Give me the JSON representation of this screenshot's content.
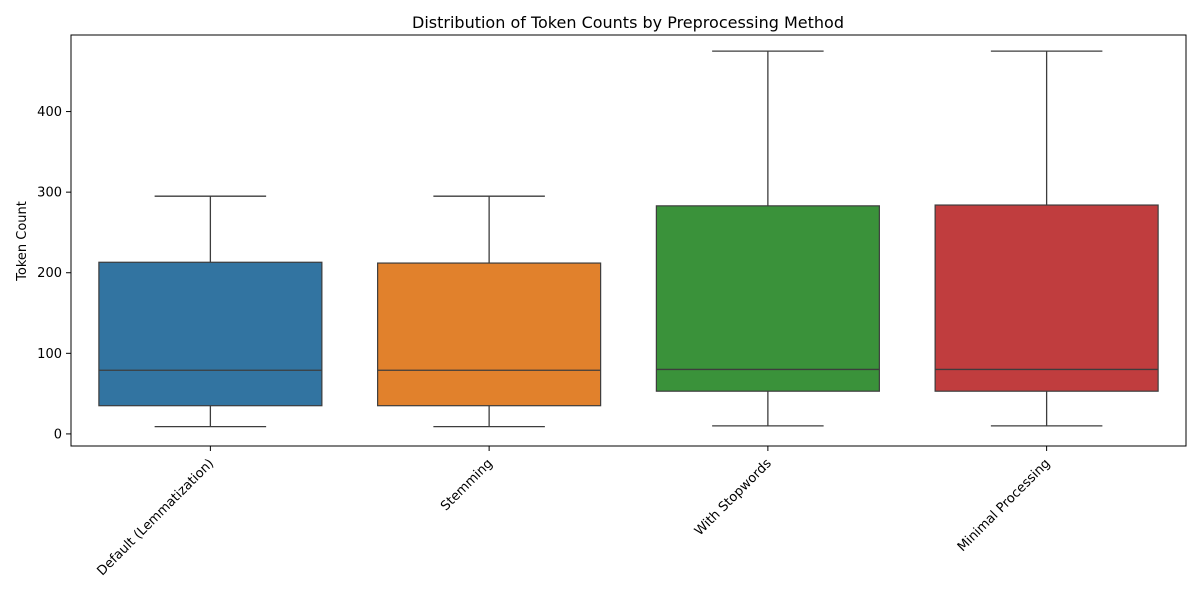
{
  "chart_data": {
    "type": "box",
    "title": "Distribution of Token Counts by Preprocessing Method",
    "xlabel": "",
    "ylabel": "Token Count",
    "ylim": [
      -15,
      495
    ],
    "yticks": [
      0,
      100,
      200,
      300,
      400
    ],
    "grid": false,
    "legend": "none",
    "categories": [
      "Default (Lemmatization)",
      "Stemming",
      "With Stopwords",
      "Minimal Processing"
    ],
    "colors": [
      "#3274a1",
      "#e1812c",
      "#3a923a",
      "#c03d3e"
    ],
    "boxes": [
      {
        "min": 9,
        "q1": 35,
        "median": 79,
        "q3": 213,
        "max": 295
      },
      {
        "min": 9,
        "q1": 35,
        "median": 79,
        "q3": 212,
        "max": 295
      },
      {
        "min": 10,
        "q1": 53,
        "median": 80,
        "q3": 283,
        "max": 475
      },
      {
        "min": 10,
        "q1": 53,
        "median": 80,
        "q3": 284,
        "max": 475
      }
    ]
  }
}
